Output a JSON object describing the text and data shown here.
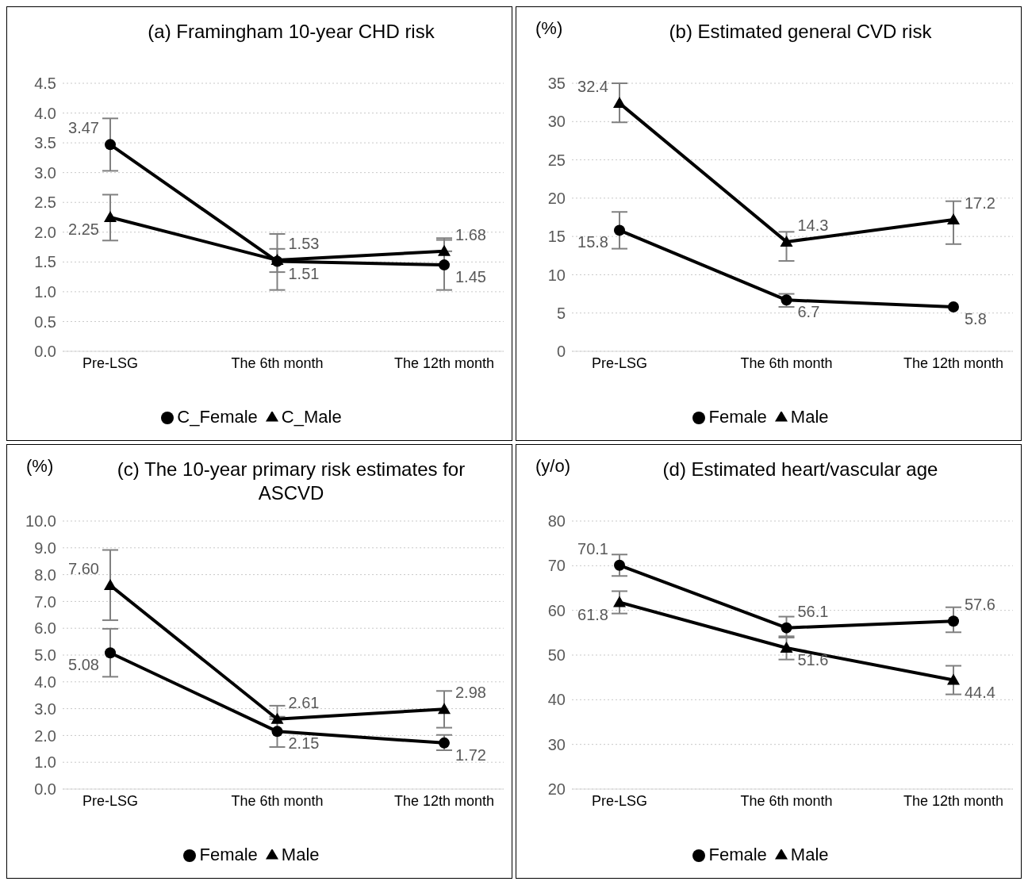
{
  "chart_data": [
    {
      "type": "line",
      "title": "(a) Framingham 10-year CHD risk",
      "categories": [
        "Pre-LSG",
        "The 6th month",
        "The 12th month"
      ],
      "ylim": [
        0,
        4.5
      ],
      "yticks": [
        {
          "value": 0,
          "label": "0.0"
        },
        {
          "value": 0.5,
          "label": "0.5"
        },
        {
          "value": 1,
          "label": "1.0"
        },
        {
          "value": 1.5,
          "label": "1.5"
        },
        {
          "value": 2,
          "label": "2.0"
        },
        {
          "value": 2.5,
          "label": "2.5"
        },
        {
          "value": 3,
          "label": "3.0"
        },
        {
          "value": 3.5,
          "label": "3.5"
        },
        {
          "value": 4,
          "label": "4.0"
        },
        {
          "value": 4.5,
          "label": "4.5"
        }
      ],
      "grid": "y",
      "legend": "bottom",
      "line_style": "solid",
      "series": [
        {
          "name": "C_Female",
          "color": "#000000",
          "marker": "circle",
          "values": [
            3.47,
            1.51,
            1.45
          ],
          "errors": [
            [
              3.03,
              3.91
            ],
            [
              1.03,
              1.97
            ],
            [
              1.03,
              1.87
            ]
          ],
          "value_labels": [
            "3.47",
            "1.51",
            "1.45"
          ]
        },
        {
          "name": "C_Male",
          "color": "#000000",
          "marker": "triangle",
          "values": [
            2.25,
            1.53,
            1.68
          ],
          "errors": [
            [
              1.86,
              2.63
            ],
            [
              1.33,
              1.72
            ],
            [
              1.68,
              1.9
            ]
          ],
          "value_labels": [
            "2.25",
            "1.53",
            "1.68"
          ]
        }
      ]
    },
    {
      "type": "line",
      "title": "(b)  Estimated general CVD risk",
      "ylabel": "(%)",
      "categories": [
        "Pre-LSG",
        "The 6th month",
        "The 12th month"
      ],
      "ylim": [
        0,
        35
      ],
      "yticks": [
        0,
        5,
        10,
        15,
        20,
        25,
        30,
        35
      ],
      "grid": "y",
      "legend": "bottom",
      "line_style": "solid",
      "series": [
        {
          "name": "Female",
          "color": "#000000",
          "marker": "circle",
          "values": [
            15.8,
            6.7,
            5.8
          ],
          "errors": [
            [
              13.4,
              18.2
            ],
            [
              5.8,
              7.5
            ],
            null
          ],
          "value_labels": [
            "15.8",
            "6.7",
            "5.8"
          ]
        },
        {
          "name": "Male",
          "color": "#000000",
          "marker": "triangle",
          "values": [
            32.4,
            14.3,
            17.2
          ],
          "errors": [
            [
              29.9,
              35
            ],
            [
              11.8,
              15.6
            ],
            [
              14,
              19.6
            ]
          ],
          "value_labels": [
            "32.4",
            "14.3",
            "17.2"
          ]
        }
      ]
    },
    {
      "type": "line",
      "title": "(c) The 10-year primary risk estimates for ASCVD",
      "ylabel": "(%)",
      "categories": [
        "Pre-LSG",
        "The 6th month",
        "The 12th month"
      ],
      "ylim": [
        0,
        10
      ],
      "yticks": [
        {
          "value": 0,
          "label": "0.0"
        },
        {
          "value": 1,
          "label": "1.0"
        },
        {
          "value": 2,
          "label": "2.0"
        },
        {
          "value": 3,
          "label": "3.0"
        },
        {
          "value": 4,
          "label": "4.0"
        },
        {
          "value": 5,
          "label": "5.0"
        },
        {
          "value": 6,
          "label": "6.0"
        },
        {
          "value": 7,
          "label": "7.0"
        },
        {
          "value": 8,
          "label": "8.0"
        },
        {
          "value": 9,
          "label": "9.0"
        },
        {
          "value": 10,
          "label": "10.0"
        }
      ],
      "grid": "y",
      "legend": "bottom",
      "line_style": "solid",
      "series": [
        {
          "name": "Female",
          "color": "#000000",
          "marker": "circle",
          "values": [
            5.08,
            2.15,
            1.72
          ],
          "errors": [
            [
              4.19,
              5.98
            ],
            [
              1.57,
              2.7
            ],
            [
              1.45,
              2.02
            ]
          ],
          "value_labels": [
            "5.08",
            "2.15",
            "1.72"
          ]
        },
        {
          "name": "Male",
          "color": "#000000",
          "marker": "triangle",
          "values": [
            7.6,
            2.61,
            2.98
          ],
          "errors": [
            [
              6.3,
              8.92
            ],
            [
              2.61,
              3.11
            ],
            [
              2.29,
              3.66
            ]
          ],
          "value_labels": [
            "7.60",
            "2.61",
            "2.98"
          ]
        }
      ]
    },
    {
      "type": "line",
      "title": "(d) Estimated heart/vascular age",
      "ylabel": "(y/o)",
      "categories": [
        "Pre-LSG",
        "The 6th month",
        "The 12th month"
      ],
      "ylim": [
        20,
        80
      ],
      "yticks": [
        20,
        30,
        40,
        50,
        60,
        70,
        80
      ],
      "grid": "y",
      "legend": "bottom",
      "line_style": "solid",
      "series": [
        {
          "name": "Female",
          "color": "#000000",
          "marker": "circle",
          "values": [
            70.1,
            56.1,
            57.6
          ],
          "errors": [
            [
              67.7,
              72.5
            ],
            [
              54.2,
              58.6
            ],
            [
              55.1,
              60.7
            ]
          ],
          "value_labels": [
            "70.1",
            "56.1",
            "57.6"
          ]
        },
        {
          "name": "Male",
          "color": "#000000",
          "marker": "triangle",
          "values": [
            61.8,
            51.6,
            44.4
          ],
          "errors": [
            [
              59.3,
              64.3
            ],
            [
              49,
              53.9
            ],
            [
              41.2,
              47.6
            ]
          ],
          "value_labels": [
            "61.8",
            "51.6",
            "44.4"
          ]
        }
      ]
    }
  ]
}
